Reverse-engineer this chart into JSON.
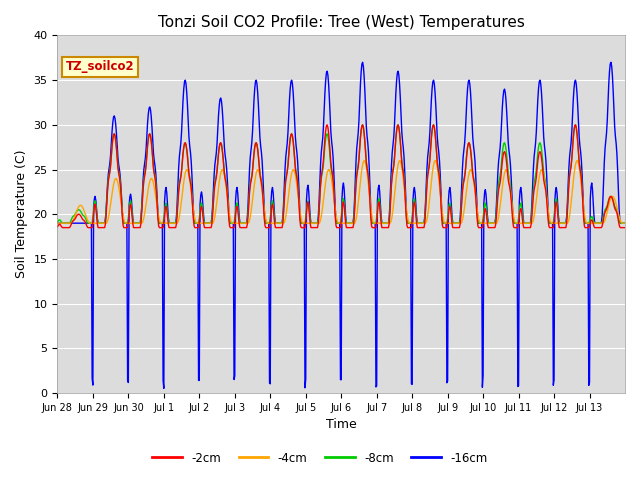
{
  "title": "Tonzi Soil CO2 Profile: Tree (West) Temperatures",
  "xlabel": "Time",
  "ylabel": "Soil Temperature (C)",
  "ylim": [
    0,
    40
  ],
  "bg_color": "#dcdcdc",
  "legend_label": "TZ_soilco2",
  "series_labels": [
    "-2cm",
    "-4cm",
    "-8cm",
    "-16cm"
  ],
  "series_colors": [
    "#ff0000",
    "#ffa500",
    "#00cc00",
    "#0000ff"
  ],
  "xtick_labels": [
    "Jun 28",
    "Jun 29",
    "Jun 30",
    "Jul 1",
    "Jul 2",
    "Jul 3",
    "Jul 4",
    "Jul 5",
    "Jul 6",
    "Jul 7",
    "Jul 8",
    "Jul 9",
    "Jul 10",
    "Jul 11",
    "Jul 12",
    "Jul 13"
  ],
  "linewidth": 1.0,
  "title_fontsize": 11
}
